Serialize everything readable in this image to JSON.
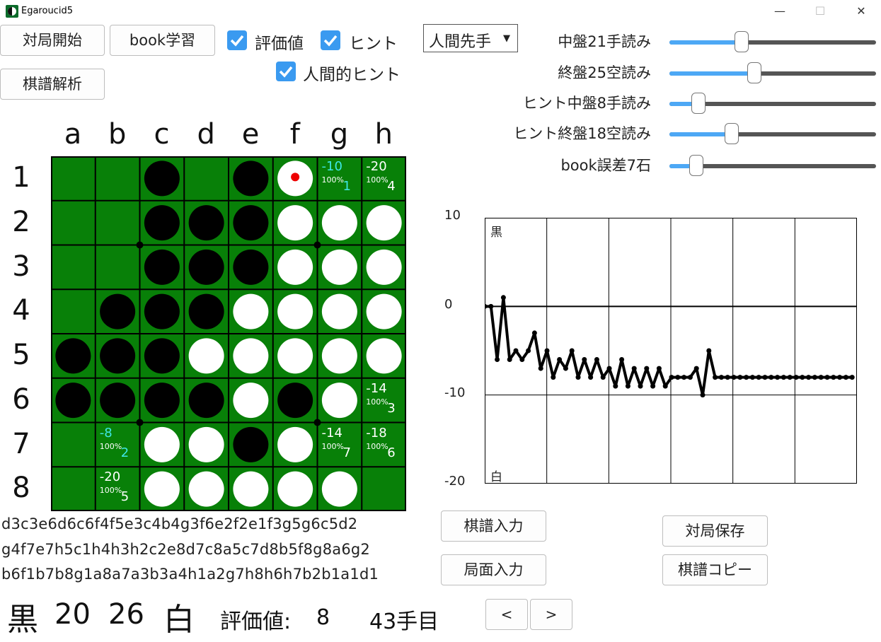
{
  "window": {
    "title": "Egaroucid5",
    "minimize": "—",
    "maximize": "☐",
    "close": "✕"
  },
  "toolbar": {
    "start_game": "対局開始",
    "book_learn": "book学習",
    "analyze": "棋譜解析",
    "show_eval": {
      "label": "評価値",
      "checked": true
    },
    "show_hint": {
      "label": "ヒント",
      "checked": true
    },
    "human_hint": {
      "label": "人間的ヒント",
      "checked": true
    },
    "first_player": "人間先手"
  },
  "sliders": [
    {
      "label": "中盤21手読み",
      "value": 21,
      "fraction": 0.35
    },
    {
      "label": "終盤25空読み",
      "value": 25,
      "fraction": 0.41
    },
    {
      "label": "ヒント中盤8手読み",
      "value": 8,
      "fraction": 0.14
    },
    {
      "label": "ヒント終盤18空読み",
      "value": 18,
      "fraction": 0.3
    },
    {
      "label": "book誤差7石",
      "value": 7,
      "fraction": 0.13
    }
  ],
  "board": {
    "cols": [
      "a",
      "b",
      "c",
      "d",
      "e",
      "f",
      "g",
      "h"
    ],
    "rows": [
      "1",
      "2",
      "3",
      "4",
      "5",
      "6",
      "7",
      "8"
    ],
    "cells": [
      "..B.BW..",
      "..BBBWWW",
      "..BBBWWW",
      ".BBBWWWW",
      "BBBWWWWW",
      "BBBBWBW.",
      "..WWBW..",
      "..WWWWW."
    ],
    "last_move": {
      "row": 0,
      "col": 5
    },
    "hints": [
      {
        "row": 0,
        "col": 6,
        "value": "-10",
        "pct": "100%",
        "rank": "1",
        "best": true
      },
      {
        "row": 0,
        "col": 7,
        "value": "-20",
        "pct": "100%",
        "rank": "4",
        "best": false
      },
      {
        "row": 5,
        "col": 7,
        "value": "-14",
        "pct": "100%",
        "rank": "3",
        "best": false
      },
      {
        "row": 6,
        "col": 1,
        "value": "-8",
        "pct": "100%",
        "rank": "2",
        "best": true
      },
      {
        "row": 6,
        "col": 6,
        "value": "-14",
        "pct": "100%",
        "rank": "7",
        "best": false
      },
      {
        "row": 6,
        "col": 7,
        "value": "-18",
        "pct": "100%",
        "rank": "6",
        "best": false
      },
      {
        "row": 7,
        "col": 1,
        "value": "-20",
        "pct": "100%",
        "rank": "5",
        "best": false
      }
    ]
  },
  "graph": {
    "y_labels": [
      "10",
      "0",
      "-10",
      "-20"
    ],
    "ylim": [
      -20,
      10
    ],
    "black_label": "黒",
    "white_label": "白",
    "values": [
      0,
      0,
      -6,
      1,
      -6,
      -5,
      -6,
      -5,
      -3,
      -7,
      -5,
      -8,
      -6,
      -7,
      -5,
      -8,
      -6,
      -8,
      -6,
      -8,
      -7,
      -9,
      -6,
      -9,
      -7,
      -9,
      -7,
      -9,
      -7,
      -9,
      -8,
      -8,
      -8,
      -8,
      -7,
      -10,
      -5,
      -8,
      -8,
      -8,
      -8,
      -8,
      -8,
      -8,
      -8,
      -8,
      -8,
      -8,
      -8,
      -8,
      -8,
      -8,
      -8,
      -8,
      -8,
      -8,
      -8,
      -8,
      -8,
      -8
    ]
  },
  "record": {
    "lines": [
      "d3c3e6d6c6f4f5e3c4b4g3f6e2f2e1f3g5g6c5d2",
      "g4f7e7h5c1h4h3h2c2e8d7c8a5c7d8b5f8g8a6g2",
      "b6f1b7b8g1a8a7a3b3a4h1a2g7h8h6h7b2b1a1d1"
    ]
  },
  "actions": {
    "input_record": "棋譜入力",
    "input_board": "局面入力",
    "save_game": "対局保存",
    "copy_record": "棋譜コピー",
    "prev": "<",
    "next": ">"
  },
  "status": {
    "black_label": "黒",
    "black_count": "20",
    "white_count": "26",
    "white_label": "白",
    "eval_label": "評価値:",
    "eval_value": "8",
    "move_label": "43手目"
  }
}
